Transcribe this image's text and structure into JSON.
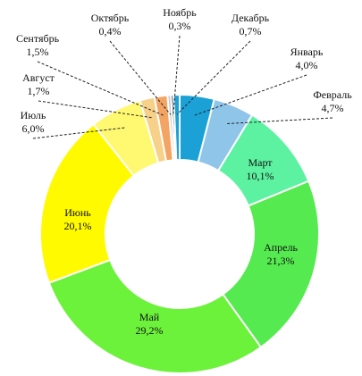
{
  "chart_data": {
    "type": "pie",
    "style": "donut",
    "order": "clockwise from top",
    "categories": [
      "Январь",
      "Февраль",
      "Март",
      "Апрель",
      "Май",
      "Июнь",
      "Июль",
      "Август",
      "Сентябрь",
      "Октябрь",
      "Ноябрь",
      "Декабрь"
    ],
    "values": [
      4.0,
      4.7,
      10.1,
      21.3,
      29.2,
      20.1,
      6.0,
      1.7,
      1.5,
      0.4,
      0.3,
      0.7
    ],
    "value_labels": [
      "4,0%",
      "4,7%",
      "10,1%",
      "21,3%",
      "29,2%",
      "20,1%",
      "6,0%",
      "1,7%",
      "1,5%",
      "0,4%",
      "0,3%",
      "0,7%"
    ],
    "colors": [
      "#1ba1d5",
      "#8fc5e8",
      "#5cf2a2",
      "#55ea4f",
      "#6cf23b",
      "#fffa00",
      "#fff870",
      "#f7d189",
      "#f3a462",
      "#c9c9c9",
      "#1b3a55",
      "#1ba1d5"
    ],
    "legend": "none"
  }
}
